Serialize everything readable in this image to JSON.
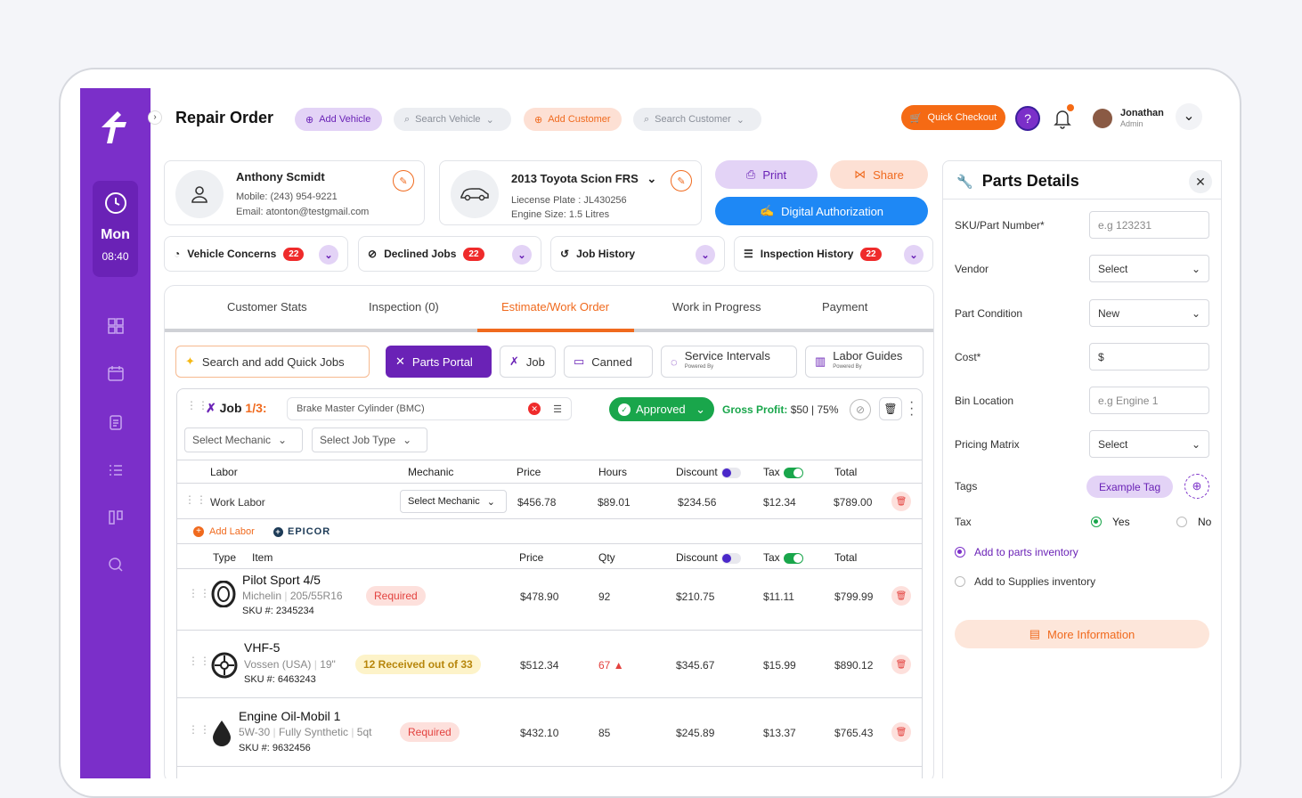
{
  "header": {
    "title": "Repair Order",
    "add_vehicle": "Add Vehicle",
    "search_vehicle": "Search Vehicle",
    "add_customer": "Add Customer",
    "search_customer": "Search Customer",
    "quick_checkout": "Quick Checkout",
    "help": "?",
    "user_name": "Jonathan",
    "user_role": "Admin"
  },
  "sidebar": {
    "day": "Mon",
    "time": "08:40"
  },
  "customer": {
    "name": "Anthony Scmidt",
    "mobile_label": "Mobile:",
    "mobile": "(243) 954-9221",
    "email_label": "Email:",
    "email": "atonton@testgmail.com"
  },
  "vehicle": {
    "name": "2013 Toyota Scion FRS",
    "plate_label": "Liecense Plate :",
    "plate": "JL430256",
    "engine_label": "Engine Size:",
    "engine": "1.5 Litres"
  },
  "actions": {
    "print": "Print",
    "share": "Share",
    "digital_auth": "Digital Authorization"
  },
  "quick_tabs": [
    {
      "label": "Vehicle Concerns",
      "badge": "22"
    },
    {
      "label": "Declined Jobs",
      "badge": "22"
    },
    {
      "label": "Job History",
      "badge": ""
    },
    {
      "label": "Inspection History",
      "badge": "22"
    }
  ],
  "tabs": [
    "Customer Stats",
    "Inspection (0)",
    "Estimate/Work Order",
    "Work in Progress",
    "Payment"
  ],
  "toolbar": {
    "search_jobs": "Search and add Quick Jobs",
    "parts_portal": "Parts Portal",
    "job": "Job",
    "canned": "Canned",
    "service_intervals": "Service Intervals",
    "labor_guides": "Labor Guides",
    "powered_by": "Powered By"
  },
  "job": {
    "label": "Job",
    "number": "1/3:",
    "description": "Brake Master Cylinder (BMC)",
    "status": "Approved",
    "gross_profit_label": "Gross Profit:",
    "gross_profit": "$50 | 75%",
    "select_mechanic": "Select Mechanic",
    "select_job_type": "Select Job Type"
  },
  "labor_table": {
    "headers": [
      "Labor",
      "Mechanic",
      "Price",
      "Hours",
      "Discount",
      "Tax",
      "Total"
    ],
    "row": {
      "name": "Work Labor",
      "mechanic": "Select Mechanic",
      "price": "$456.78",
      "hours": "$89.01",
      "discount": "$234.56",
      "tax": "$12.34",
      "total": "$789.00"
    },
    "add_labor": "Add Labor",
    "epicor": "EPICOR"
  },
  "parts_table": {
    "headers": [
      "Type",
      "Item",
      "Price",
      "Qty",
      "Discount",
      "Tax",
      "Total"
    ],
    "rows": [
      {
        "name": "Pilot Sport 4/5",
        "brand": "Michelin",
        "spec": "205/55R16",
        "status": "Required",
        "sku_label": "SKU #:",
        "sku": "2345234",
        "price": "$478.90",
        "qty": "92",
        "discount": "$210.75",
        "tax": "$11.11",
        "total": "$799.99"
      },
      {
        "name": "VHF-5",
        "brand": "Vossen (USA)",
        "spec": "19\"",
        "status": "12 Received out of 33",
        "sku_label": "SKU #:",
        "sku": "6463243",
        "price": "$512.34",
        "qty": "67",
        "discount": "$345.67",
        "tax": "$15.99",
        "total": "$890.12"
      },
      {
        "name": "Engine Oil-Mobil 1",
        "brand": "5W-30",
        "spec": "Fully Synthetic",
        "spec2": "5qt",
        "status": "Required",
        "sku_label": "SKU #:",
        "sku": "9632456",
        "price": "$432.10",
        "qty": "85",
        "discount": "$245.89",
        "tax": "$13.37",
        "total": "$765.43"
      }
    ]
  },
  "parts_panel": {
    "title": "Parts Details",
    "sku_label": "SKU/Part Number*",
    "sku_placeholder": "e.g 123231",
    "vendor_label": "Vendor",
    "vendor_value": "Select",
    "condition_label": "Part Condition",
    "condition_value": "New",
    "cost_label": "Cost*",
    "cost_value": "$",
    "bin_label": "Bin Location",
    "bin_placeholder": "e.g Engine 1",
    "pricing_label": "Pricing Matrix",
    "pricing_value": "Select",
    "tags_label": "Tags",
    "tag_example": "Example Tag",
    "tax_label": "Tax",
    "tax_yes": "Yes",
    "tax_no": "No",
    "add_parts_inventory": "Add to parts inventory",
    "add_supplies_inventory": "Add to Supplies inventory",
    "more_info": "More Information"
  },
  "colors": {
    "brand": "#7b2fc9",
    "accent": "#f06a1e",
    "approved": "#19a64b",
    "danger": "#ef2b2b",
    "link_blue": "#1e88f5"
  }
}
